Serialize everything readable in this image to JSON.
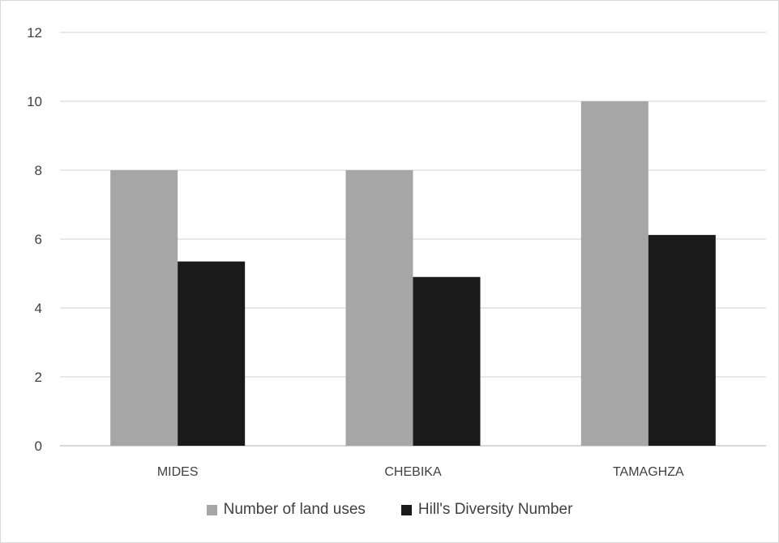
{
  "chart_data": {
    "type": "bar",
    "categories": [
      "MIDES",
      "CHEBIKA",
      "TAMAGHZA"
    ],
    "series": [
      {
        "name": "Number of land uses",
        "values": [
          8,
          8,
          10
        ],
        "color": "#a6a6a6"
      },
      {
        "name": "Hill's Diversity Number",
        "values": [
          5.35,
          4.9,
          6.12
        ],
        "color": "#1a1a1a"
      }
    ],
    "ylim": [
      0,
      12
    ],
    "yticks": [
      "0",
      "2",
      "4",
      "6",
      "8",
      "10",
      "12"
    ],
    "title": "",
    "xlabel": "",
    "ylabel": "",
    "grid": true,
    "legend_position": "bottom"
  }
}
